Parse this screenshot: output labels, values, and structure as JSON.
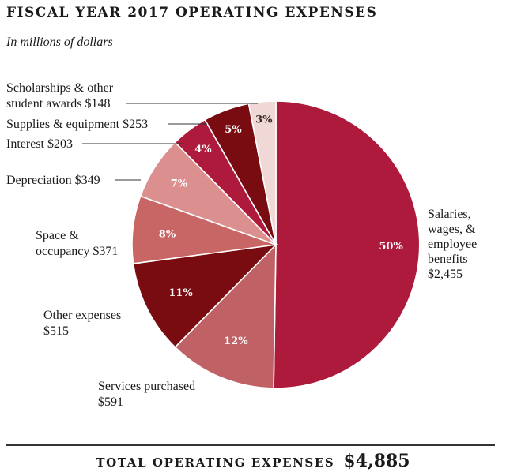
{
  "title": "FISCAL YEAR 2017 OPERATING EXPENSES",
  "subtitle": "In millions of dollars",
  "total": {
    "label": "TOTAL OPERATING EXPENSES",
    "value": "$4,885"
  },
  "chart_data": {
    "type": "pie",
    "unit": "millions of dollars",
    "slices": [
      {
        "key": "salaries",
        "label_lines": [
          "Salaries,",
          "wages, &",
          "employee",
          "benefits",
          "$2,455"
        ],
        "value": 2455,
        "percent_label": "50%",
        "color": "#ad1a3c"
      },
      {
        "key": "services",
        "label_lines": [
          "Services purchased",
          "$591"
        ],
        "value": 591,
        "percent_label": "12%",
        "color": "#c06166"
      },
      {
        "key": "other",
        "label_lines": [
          "Other expenses",
          "$515"
        ],
        "value": 515,
        "percent_label": "11%",
        "color": "#780c10"
      },
      {
        "key": "space",
        "label_lines": [
          "Space &",
          "occupancy $371"
        ],
        "value": 371,
        "percent_label": "8%",
        "color": "#c86665"
      },
      {
        "key": "depreciation",
        "label_lines": [
          "Depreciation $349"
        ],
        "value": 349,
        "percent_label": "7%",
        "color": "#db908f"
      },
      {
        "key": "interest",
        "label_lines": [
          "Interest $203"
        ],
        "value": 203,
        "percent_label": "4%",
        "color": "#ad1a3c"
      },
      {
        "key": "supplies",
        "label_lines": [
          "Supplies & equipment $253"
        ],
        "value": 253,
        "percent_label": "5%",
        "color": "#780c10"
      },
      {
        "key": "scholarships",
        "label_lines": [
          "Scholarships & other",
          "student awards $148"
        ],
        "value": 148,
        "percent_label": "3%",
        "color": "#f0d8d6"
      }
    ]
  }
}
